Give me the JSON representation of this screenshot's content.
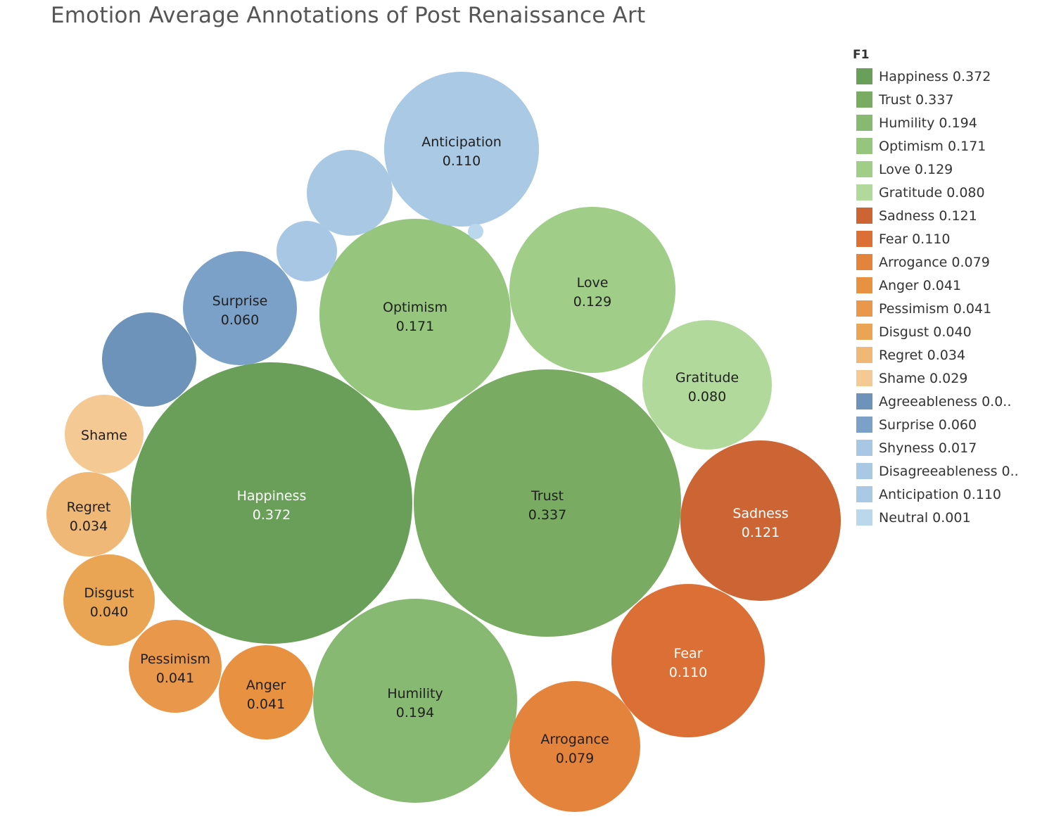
{
  "chart_data": {
    "type": "bubble",
    "title": "Emotion Average Annotations of Post Renaissance Art",
    "legend_title": "F1",
    "legend_placement": "right",
    "series": [
      {
        "name": "Happiness",
        "value": 0.372,
        "value_label": "0.372",
        "color": "#6a9f59",
        "legend_label": "Happiness 0.372",
        "label_color": "#ffffff",
        "show_value": true
      },
      {
        "name": "Trust",
        "value": 0.337,
        "value_label": "0.337",
        "color": "#79ab63",
        "legend_label": "Trust 0.337",
        "label_color": "#1f1f1f",
        "show_value": true
      },
      {
        "name": "Humility",
        "value": 0.194,
        "value_label": "0.194",
        "color": "#88b973",
        "legend_label": "Humility 0.194",
        "label_color": "#1f1f1f",
        "show_value": true
      },
      {
        "name": "Optimism",
        "value": 0.171,
        "value_label": "0.171",
        "color": "#96c57e",
        "legend_label": "Optimism 0.171",
        "label_color": "#1f1f1f",
        "show_value": true
      },
      {
        "name": "Love",
        "value": 0.129,
        "value_label": "0.129",
        "color": "#a0cd88",
        "legend_label": "Love 0.129",
        "label_color": "#1f1f1f",
        "show_value": true
      },
      {
        "name": "Gratitude",
        "value": 0.08,
        "value_label": "0.080",
        "color": "#b2d99c",
        "legend_label": "Gratitude 0.080",
        "label_color": "#1f1f1f",
        "show_value": true
      },
      {
        "name": "Sadness",
        "value": 0.121,
        "value_label": "0.121",
        "color": "#cc6533",
        "legend_label": "Sadness 0.121",
        "label_color": "#ffffff",
        "show_value": true
      },
      {
        "name": "Fear",
        "value": 0.11,
        "value_label": "0.110",
        "color": "#db6f36",
        "legend_label": "Fear 0.110",
        "label_color": "#ffffff",
        "show_value": true
      },
      {
        "name": "Arrogance",
        "value": 0.079,
        "value_label": "0.079",
        "color": "#e4833b",
        "legend_label": "Arrogance 0.079",
        "label_color": "#1f1f1f",
        "show_value": true
      },
      {
        "name": "Anger",
        "value": 0.041,
        "value_label": "0.041",
        "color": "#e79141",
        "legend_label": "Anger 0.041",
        "label_color": "#1f1f1f",
        "show_value": true
      },
      {
        "name": "Pessimism",
        "value": 0.041,
        "value_label": "0.041",
        "color": "#e9974a",
        "legend_label": "Pessimism 0.041",
        "label_color": "#1f1f1f",
        "show_value": true
      },
      {
        "name": "Disgust",
        "value": 0.04,
        "value_label": "0.040",
        "color": "#e9a554",
        "legend_label": "Disgust 0.040",
        "label_color": "#1f1f1f",
        "show_value": true
      },
      {
        "name": "Regret",
        "value": 0.034,
        "value_label": "0.034",
        "color": "#f0b876",
        "legend_label": "Regret 0.034",
        "label_color": "#1f1f1f",
        "show_value": true
      },
      {
        "name": "Shame",
        "value": 0.029,
        "value_label": "0.029",
        "color": "#f5c993",
        "legend_label": "Shame 0.029",
        "label_color": "#1f1f1f",
        "show_value": false
      },
      {
        "name": "Agreeableness",
        "value": null,
        "value_label": "",
        "color": "#6d93bb",
        "legend_label": "Agreeableness 0.0..",
        "label_color": "#1f1f1f",
        "show_name": false,
        "show_value": false
      },
      {
        "name": "Surprise",
        "value": 0.06,
        "value_label": "0.060",
        "color": "#7ba1c8",
        "legend_label": "Surprise 0.060",
        "label_color": "#1f1f1f",
        "show_value": true
      },
      {
        "name": "Shyness",
        "value": 0.017,
        "value_label": "0.017",
        "color": "#a8c7e4",
        "legend_label": "Shyness 0.017",
        "label_color": "#1f1f1f",
        "show_name": false,
        "show_value": false
      },
      {
        "name": "Disagreeableness",
        "value": null,
        "value_label": "",
        "color": "#a9c8e4",
        "legend_label": "Disagreeableness 0..",
        "label_color": "#1f1f1f",
        "show_name": false,
        "show_value": false
      },
      {
        "name": "Anticipation",
        "value": 0.11,
        "value_label": "0.110",
        "color": "#a9c9e4",
        "legend_label": "Anticipation 0.110",
        "label_color": "#1f1f1f",
        "show_value": true
      },
      {
        "name": "Neutral",
        "value": 0.001,
        "value_label": "0.001",
        "color": "#bad7ec",
        "legend_label": "Neutral 0.001",
        "label_color": "#1f1f1f",
        "show_name": false,
        "show_value": false
      }
    ]
  }
}
